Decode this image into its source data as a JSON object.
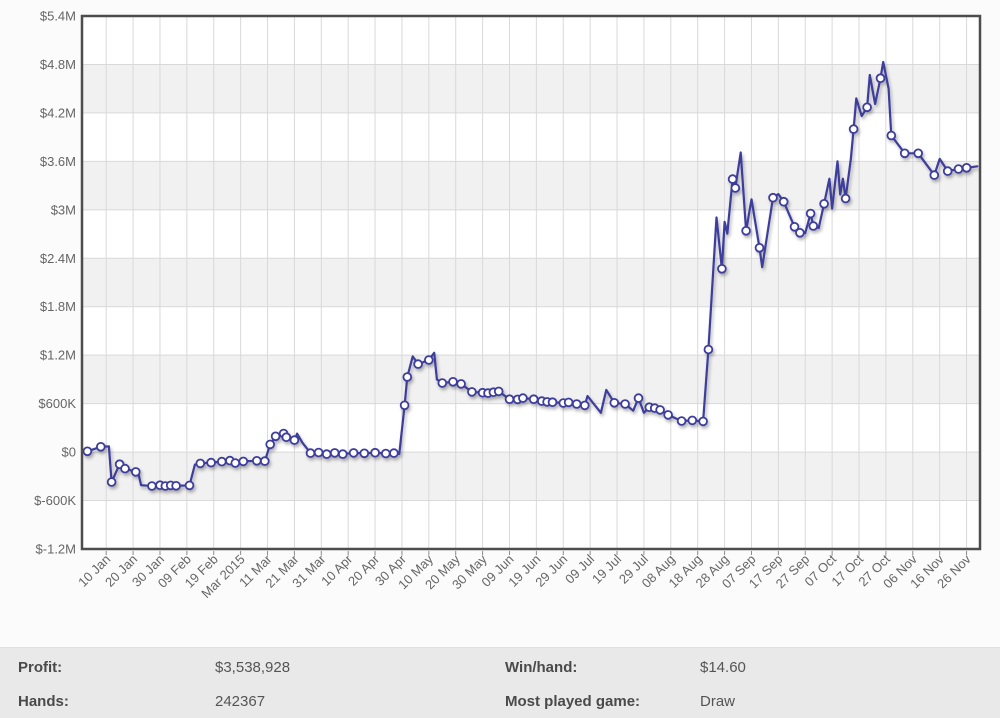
{
  "colors": {
    "page_bg": "#fbfbfb",
    "plot_bg": "#ffffff",
    "band": "#f1f1f1",
    "grid": "#d9d9d9",
    "plot_border": "#4d4d4d",
    "axis_text": "#666666",
    "line": "#3c3c9c",
    "marker_fill": "#ffffff",
    "panel_bg": "#e9e9e9",
    "label_text": "#4a4a4a",
    "value_text": "#555555"
  },
  "stats": {
    "profit": {
      "label": "Profit:",
      "value": "$3,538,928"
    },
    "hands": {
      "label": "Hands:",
      "value": "242367"
    },
    "win_hand": {
      "label": "Win/hand:",
      "value": "$14.60"
    },
    "most_game": {
      "label": "Most played game:",
      "value": "Draw"
    }
  },
  "chart_data": {
    "type": "line",
    "title": "",
    "xlabel": "",
    "ylabel": "",
    "legend_position": "none",
    "grid": true,
    "alternate_bands": true,
    "x_unit": "days since 1 Jan 2015",
    "xlim_days": [
      0,
      334
    ],
    "ylim": [
      -1200000,
      5400000
    ],
    "y_ticks": [
      {
        "value": 5400000,
        "label": "$5.4M"
      },
      {
        "value": 4800000,
        "label": "$4.8M"
      },
      {
        "value": 4200000,
        "label": "$4.2M"
      },
      {
        "value": 3600000,
        "label": "$3.6M"
      },
      {
        "value": 3000000,
        "label": "$3M"
      },
      {
        "value": 2400000,
        "label": "$2.4M"
      },
      {
        "value": 1800000,
        "label": "$1.8M"
      },
      {
        "value": 1200000,
        "label": "$1.2M"
      },
      {
        "value": 600000,
        "label": "$600K"
      },
      {
        "value": 0,
        "label": "$0"
      },
      {
        "value": -600000,
        "label": "$-600K"
      },
      {
        "value": -1200000,
        "label": "$-1.2M"
      }
    ],
    "x_ticks": [
      {
        "day": 9,
        "label": "10 Jan"
      },
      {
        "day": 19,
        "label": "20 Jan"
      },
      {
        "day": 29,
        "label": "30 Jan"
      },
      {
        "day": 39,
        "label": "09 Feb"
      },
      {
        "day": 49,
        "label": "19 Feb"
      },
      {
        "day": 59,
        "label": "Mar 2015"
      },
      {
        "day": 69,
        "label": "11 Mar"
      },
      {
        "day": 79,
        "label": "21 Mar"
      },
      {
        "day": 89,
        "label": "31 Mar"
      },
      {
        "day": 99,
        "label": "10 Apr"
      },
      {
        "day": 109,
        "label": "20 Apr"
      },
      {
        "day": 119,
        "label": "30 Apr"
      },
      {
        "day": 129,
        "label": "10 May"
      },
      {
        "day": 139,
        "label": "20 May"
      },
      {
        "day": 149,
        "label": "30 May"
      },
      {
        "day": 159,
        "label": "09 Jun"
      },
      {
        "day": 169,
        "label": "19 Jun"
      },
      {
        "day": 179,
        "label": "29 Jun"
      },
      {
        "day": 189,
        "label": "09 Jul"
      },
      {
        "day": 199,
        "label": "19 Jul"
      },
      {
        "day": 209,
        "label": "29 Jul"
      },
      {
        "day": 219,
        "label": "08 Aug"
      },
      {
        "day": 229,
        "label": "18 Aug"
      },
      {
        "day": 239,
        "label": "28 Aug"
      },
      {
        "day": 249,
        "label": "07 Sep"
      },
      {
        "day": 259,
        "label": "17 Sep"
      },
      {
        "day": 269,
        "label": "27 Sep"
      },
      {
        "day": 279,
        "label": "07 Oct"
      },
      {
        "day": 289,
        "label": "17 Oct"
      },
      {
        "day": 299,
        "label": "27 Oct"
      },
      {
        "day": 309,
        "label": "06 Nov"
      },
      {
        "day": 319,
        "label": "16 Nov"
      },
      {
        "day": 329,
        "label": "26 Nov"
      }
    ],
    "series": [
      {
        "name": "cumulative-profit-usd",
        "points_format": "[day, value_usd, has_marker]",
        "points": [
          [
            2,
            10000,
            1
          ],
          [
            7,
            65000,
            1
          ],
          [
            10,
            70000,
            0
          ],
          [
            11,
            -370000,
            1
          ],
          [
            14,
            -150000,
            1
          ],
          [
            16,
            -205000,
            1
          ],
          [
            20,
            -245000,
            1
          ],
          [
            21,
            -270000,
            0
          ],
          [
            22,
            -410000,
            0
          ],
          [
            26,
            -420000,
            1
          ],
          [
            29,
            -410000,
            1
          ],
          [
            31,
            -420000,
            1
          ],
          [
            33,
            -412000,
            1
          ],
          [
            35,
            -418000,
            1
          ],
          [
            40,
            -412000,
            1
          ],
          [
            42,
            -155000,
            0
          ],
          [
            44,
            -140000,
            1
          ],
          [
            48,
            -130000,
            1
          ],
          [
            52,
            -118000,
            1
          ],
          [
            55,
            -105000,
            1
          ],
          [
            57,
            -135000,
            1
          ],
          [
            60,
            -115000,
            1
          ],
          [
            65,
            -108000,
            1
          ],
          [
            68,
            -112000,
            1
          ],
          [
            70,
            95000,
            1
          ],
          [
            72,
            195000,
            1
          ],
          [
            75,
            230000,
            1
          ],
          [
            76,
            185000,
            1
          ],
          [
            79,
            148000,
            1
          ],
          [
            80,
            228000,
            0
          ],
          [
            82,
            115000,
            0
          ],
          [
            85,
            -12000,
            1
          ],
          [
            88,
            -5000,
            1
          ],
          [
            91,
            -25000,
            1
          ],
          [
            94,
            -10000,
            1
          ],
          [
            97,
            -25000,
            1
          ],
          [
            101,
            -10000,
            1
          ],
          [
            105,
            -15000,
            1
          ],
          [
            109,
            -8000,
            1
          ],
          [
            113,
            -18000,
            1
          ],
          [
            116,
            -12000,
            1
          ],
          [
            118,
            -22000,
            0
          ],
          [
            120,
            580000,
            1
          ],
          [
            121,
            930000,
            1
          ],
          [
            123,
            1185000,
            0
          ],
          [
            125,
            1090000,
            1
          ],
          [
            129,
            1140000,
            1
          ],
          [
            131,
            1230000,
            0
          ],
          [
            132,
            900000,
            0
          ],
          [
            134,
            855000,
            1
          ],
          [
            138,
            870000,
            1
          ],
          [
            141,
            845000,
            1
          ],
          [
            145,
            745000,
            1
          ],
          [
            149,
            735000,
            1
          ],
          [
            151,
            730000,
            1
          ],
          [
            153,
            742000,
            1
          ],
          [
            155,
            752000,
            1
          ],
          [
            159,
            655000,
            1
          ],
          [
            162,
            652000,
            1
          ],
          [
            164,
            668000,
            1
          ],
          [
            168,
            655000,
            1
          ],
          [
            171,
            632000,
            1
          ],
          [
            173,
            622000,
            1
          ],
          [
            175,
            618000,
            1
          ],
          [
            179,
            608000,
            1
          ],
          [
            181,
            615000,
            1
          ],
          [
            184,
            595000,
            1
          ],
          [
            187,
            578000,
            1
          ],
          [
            188,
            695000,
            0
          ],
          [
            193,
            487000,
            0
          ],
          [
            195,
            770000,
            0
          ],
          [
            198,
            610000,
            1
          ],
          [
            202,
            595000,
            1
          ],
          [
            205,
            512000,
            0
          ],
          [
            207,
            668000,
            1
          ],
          [
            209,
            487000,
            0
          ],
          [
            211,
            556000,
            1
          ],
          [
            213,
            545000,
            1
          ],
          [
            215,
            522000,
            1
          ],
          [
            218,
            460000,
            1
          ],
          [
            223,
            385000,
            1
          ],
          [
            227,
            392000,
            1
          ],
          [
            231,
            380000,
            1
          ],
          [
            233,
            1270000,
            1
          ],
          [
            236,
            2905000,
            0
          ],
          [
            238,
            2270000,
            1
          ],
          [
            239,
            2850000,
            0
          ],
          [
            240,
            2705000,
            0
          ],
          [
            242,
            3380000,
            1
          ],
          [
            243,
            3270000,
            1
          ],
          [
            245,
            3710000,
            0
          ],
          [
            247,
            2740000,
            1
          ],
          [
            249,
            3130000,
            0
          ],
          [
            252,
            2530000,
            1
          ],
          [
            253,
            2290000,
            0
          ],
          [
            257,
            3150000,
            1
          ],
          [
            259,
            3195000,
            0
          ],
          [
            261,
            3100000,
            1
          ],
          [
            265,
            2790000,
            1
          ],
          [
            267,
            2715000,
            1
          ],
          [
            269,
            2710000,
            0
          ],
          [
            271,
            2955000,
            1
          ],
          [
            272,
            2800000,
            1
          ],
          [
            274,
            2775000,
            0
          ],
          [
            276,
            3075000,
            1
          ],
          [
            278,
            3385000,
            0
          ],
          [
            279,
            3015000,
            0
          ],
          [
            281,
            3600000,
            0
          ],
          [
            282,
            3190000,
            0
          ],
          [
            283,
            3385000,
            0
          ],
          [
            284,
            3140000,
            1
          ],
          [
            286,
            3635000,
            0
          ],
          [
            287,
            4000000,
            1
          ],
          [
            288,
            4380000,
            0
          ],
          [
            290,
            4160000,
            0
          ],
          [
            292,
            4270000,
            1
          ],
          [
            293,
            4670000,
            0
          ],
          [
            295,
            4310000,
            0
          ],
          [
            297,
            4630000,
            1
          ],
          [
            298,
            4830000,
            0
          ],
          [
            300,
            4500000,
            0
          ],
          [
            301,
            3920000,
            1
          ],
          [
            306,
            3700000,
            1
          ],
          [
            311,
            3700000,
            1
          ],
          [
            317,
            3430000,
            1
          ],
          [
            319,
            3630000,
            0
          ],
          [
            322,
            3480000,
            1
          ],
          [
            326,
            3505000,
            1
          ],
          [
            329,
            3520000,
            1
          ],
          [
            333,
            3538928,
            0
          ]
        ]
      }
    ]
  }
}
